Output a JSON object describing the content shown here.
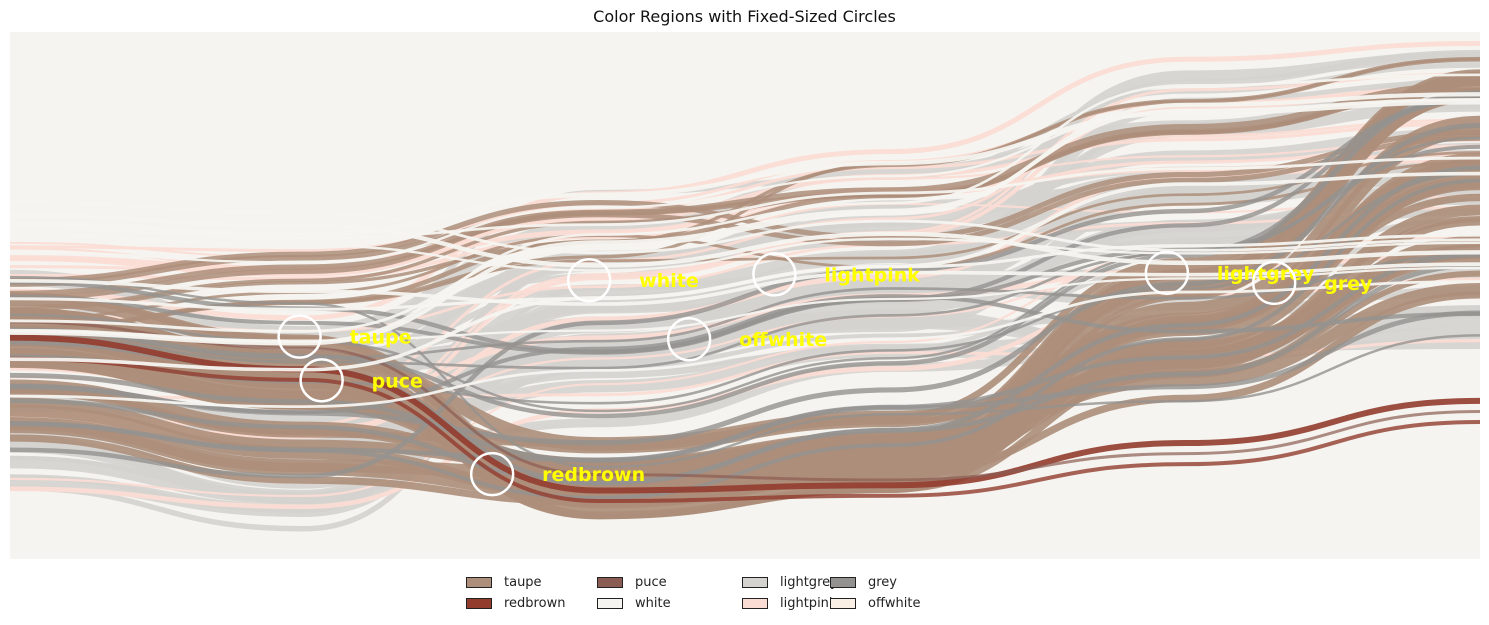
{
  "chart_data": {
    "type": "heatmap",
    "title": "Color Regions with Fixed-Sized Circles",
    "xlabel": "",
    "ylabel": "",
    "axes": "off",
    "legend_placement": "bottom-center",
    "legend": [
      {
        "name": "taupe",
        "color": "#AD8E7A"
      },
      {
        "name": "redbrown",
        "color": "#923C2E"
      },
      {
        "name": "puce",
        "color": "#8B5C53"
      },
      {
        "name": "white",
        "color": "#F5F4F0"
      },
      {
        "name": "lightgrey",
        "color": "#D5D3CF"
      },
      {
        "name": "lightpink",
        "color": "#FBDCD4"
      },
      {
        "name": "grey",
        "color": "#939290"
      },
      {
        "name": "offwhite",
        "color": "#F9EFE4"
      }
    ],
    "annotations": [
      {
        "label": "white",
        "x": 0.394,
        "y": 0.471
      },
      {
        "label": "lightpink",
        "x": 0.52,
        "y": 0.46
      },
      {
        "label": "lightgrey",
        "x": 0.787,
        "y": 0.457
      },
      {
        "label": "grey",
        "x": 0.86,
        "y": 0.476
      },
      {
        "label": "taupe",
        "x": 0.197,
        "y": 0.578
      },
      {
        "label": "offwhite",
        "x": 459,
        "y": 0.583
      },
      {
        "label": "puce",
        "x": 0.212,
        "y": 0.661
      },
      {
        "label": "redbrown",
        "x": 0.328,
        "y": 0.839
      }
    ],
    "circle_style": {
      "edge": "#ffffff",
      "label_color": "#FFFF00"
    }
  }
}
